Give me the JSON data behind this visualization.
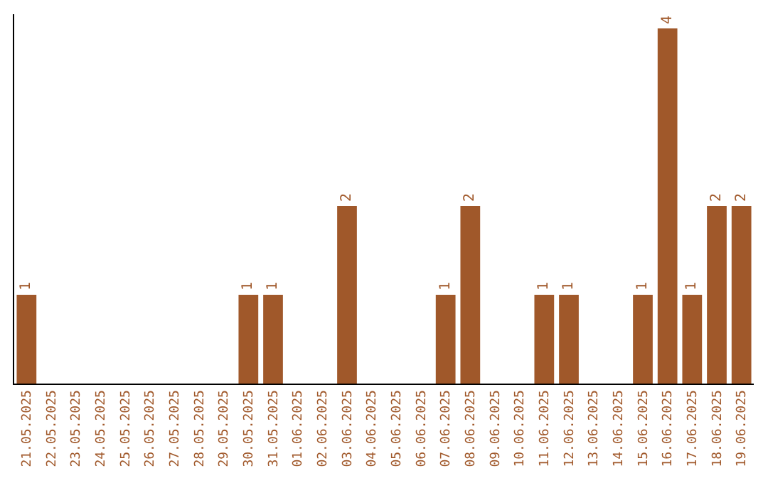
{
  "chart_data": {
    "type": "bar",
    "categories": [
      "21.05.2025",
      "22.05.2025",
      "23.05.2025",
      "24.05.2025",
      "25.05.2025",
      "26.05.2025",
      "27.05.2025",
      "28.05.2025",
      "29.05.2025",
      "30.05.2025",
      "31.05.2025",
      "01.06.2025",
      "02.06.2025",
      "03.06.2025",
      "04.06.2025",
      "05.06.2025",
      "06.06.2025",
      "07.06.2025",
      "08.06.2025",
      "09.06.2025",
      "10.06.2025",
      "11.06.2025",
      "12.06.2025",
      "13.06.2025",
      "14.06.2025",
      "15.06.2025",
      "16.06.2025",
      "17.06.2025",
      "18.06.2025",
      "19.06.2025"
    ],
    "values": [
      1,
      0,
      0,
      0,
      0,
      0,
      0,
      0,
      0,
      1,
      1,
      0,
      0,
      2,
      0,
      0,
      0,
      1,
      2,
      0,
      0,
      1,
      1,
      0,
      0,
      1,
      4,
      1,
      2,
      2
    ],
    "value_labels": [
      "1",
      null,
      null,
      null,
      null,
      null,
      null,
      null,
      null,
      "1",
      "1",
      null,
      null,
      "2",
      null,
      null,
      null,
      "1",
      "2",
      null,
      null,
      "1",
      "1",
      null,
      null,
      "1",
      "4",
      "1",
      "2",
      "2"
    ],
    "color": "#a0582a",
    "tick_labels": "x"
  }
}
